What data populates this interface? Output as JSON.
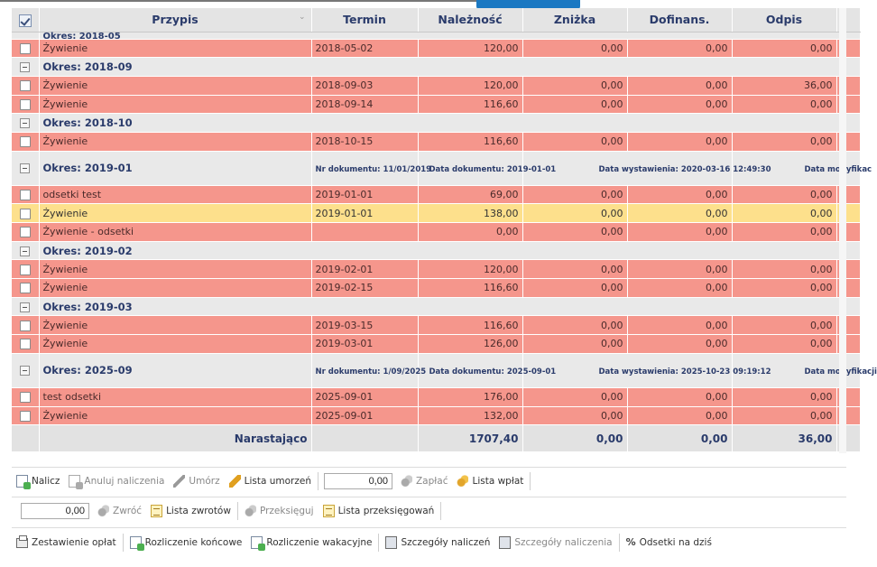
{
  "columns": {
    "przypis": "Przypis",
    "termin": "Termin",
    "naleznosc": "Należność",
    "znizka": "Zniżka",
    "dofinans": "Dofinans.",
    "odpis": "Odpis"
  },
  "rows": [
    {
      "type": "group_cut",
      "label": "Okres: 2018-05"
    },
    {
      "type": "item",
      "style": "red",
      "name": "Żywienie",
      "termin": "2018-05-02",
      "naleznosc": "120,00",
      "znizka": "0,00",
      "dofinans": "0,00",
      "odpis": "0,00"
    },
    {
      "type": "group",
      "label": "Okres: 2018-09"
    },
    {
      "type": "item",
      "style": "red",
      "name": "Żywienie",
      "termin": "2018-09-03",
      "naleznosc": "120,00",
      "znizka": "0,00",
      "dofinans": "0,00",
      "odpis": "36,00"
    },
    {
      "type": "item",
      "style": "red",
      "name": "Żywienie",
      "termin": "2018-09-14",
      "naleznosc": "116,60",
      "znizka": "0,00",
      "dofinans": "0,00",
      "odpis": "0,00"
    },
    {
      "type": "group",
      "label": "Okres: 2018-10"
    },
    {
      "type": "item",
      "style": "red",
      "name": "Żywienie",
      "termin": "2018-10-15",
      "naleznosc": "116,60",
      "znizka": "0,00",
      "dofinans": "0,00",
      "odpis": "0,00"
    },
    {
      "type": "group2",
      "label": "Okres: 2019-01",
      "nr": "Nr dokumentu: 11/01/2019",
      "data": "Data dokumentu: 2019-01-01",
      "wyst": "Data wystawienia: 2020-03-16 12:49:30",
      "mod": "Data modyfikac"
    },
    {
      "type": "item",
      "style": "red",
      "name": "odsetki test",
      "termin": "2019-01-01",
      "naleznosc": "69,00",
      "znizka": "0,00",
      "dofinans": "0,00",
      "odpis": "0,00"
    },
    {
      "type": "item",
      "style": "yel",
      "name": "Żywienie",
      "termin": "2019-01-01",
      "naleznosc": "138,00",
      "znizka": "0,00",
      "dofinans": "0,00",
      "odpis": "0,00"
    },
    {
      "type": "item",
      "style": "red",
      "name": "Żywienie - odsetki",
      "termin": "",
      "naleznosc": "0,00",
      "znizka": "0,00",
      "dofinans": "0,00",
      "odpis": "0,00"
    },
    {
      "type": "group",
      "label": "Okres: 2019-02"
    },
    {
      "type": "item",
      "style": "red",
      "name": "Żywienie",
      "termin": "2019-02-01",
      "naleznosc": "120,00",
      "znizka": "0,00",
      "dofinans": "0,00",
      "odpis": "0,00"
    },
    {
      "type": "item",
      "style": "red",
      "name": "Żywienie",
      "termin": "2019-02-15",
      "naleznosc": "116,60",
      "znizka": "0,00",
      "dofinans": "0,00",
      "odpis": "0,00"
    },
    {
      "type": "group",
      "label": "Okres: 2019-03"
    },
    {
      "type": "item",
      "style": "red",
      "name": "Żywienie",
      "termin": "2019-03-15",
      "naleznosc": "116,60",
      "znizka": "0,00",
      "dofinans": "0,00",
      "odpis": "0,00"
    },
    {
      "type": "item",
      "style": "red",
      "name": "Żywienie",
      "termin": "2019-03-01",
      "naleznosc": "126,00",
      "znizka": "0,00",
      "dofinans": "0,00",
      "odpis": "0,00"
    },
    {
      "type": "group2",
      "label": "Okres: 2025-09",
      "nr": "Nr dokumentu: 1/09/2025",
      "data": "Data dokumentu: 2025-09-01",
      "wyst": "Data wystawienia: 2025-10-23 09:19:12",
      "mod": "Data modyfikacji"
    },
    {
      "type": "item",
      "style": "red",
      "name": "test odsetki",
      "termin": "2025-09-01",
      "naleznosc": "176,00",
      "znizka": "0,00",
      "dofinans": "0,00",
      "odpis": "0,00"
    },
    {
      "type": "item",
      "style": "red",
      "name": "Żywienie",
      "termin": "2025-09-01",
      "naleznosc": "132,00",
      "znizka": "0,00",
      "dofinans": "0,00",
      "odpis": "0,00"
    }
  ],
  "summary": {
    "label": "Narastająco",
    "naleznosc": "1707,40",
    "znizka": "0,00",
    "dofinans": "0,00",
    "odpis": "36,00"
  },
  "toolbar1": {
    "nalicz": "Nalicz",
    "anuluj": "Anuluj naliczenia",
    "umorz": "Umórz",
    "lista_umorzen": "Lista umorzeń",
    "amount": "0,00",
    "zaplac": "Zapłać",
    "lista_wplat": "Lista wpłat"
  },
  "toolbar2": {
    "amount": "0,00",
    "zwroc": "Zwróć",
    "lista_zwrotow": "Lista zwrotów",
    "przeksieguj": "Przeksięguj",
    "lista_przeksiegowan": "Lista przeksięgowań"
  },
  "toolbar3": {
    "zestawienie": "Zestawienie opłat",
    "rozliczenie_koncowe": "Rozliczenie końcowe",
    "rozliczenie_wakacyjne": "Rozliczenie wakacyjne",
    "szczegoly_naliczen": "Szczegóły naliczeń",
    "szczegoly_naliczenia": "Szczegóły naliczenia",
    "odsetki_pct": "%",
    "odsetki": "Odsetki na dziś"
  }
}
